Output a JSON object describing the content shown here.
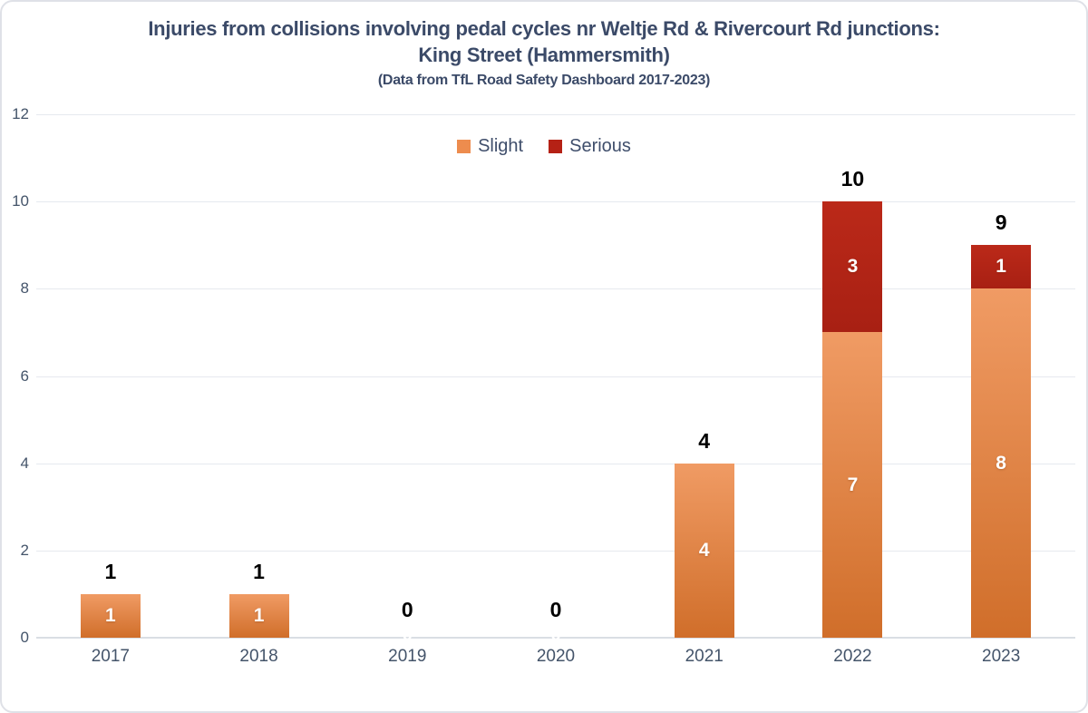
{
  "window": {
    "background": "#FFFFFF",
    "border_color": "#DFE1E7"
  },
  "chart_data": {
    "type": "bar",
    "stacked": true,
    "title_line1": "Injuries from collisions involving pedal cycles nr Weltje Rd & Rivercourt Rd junctions:",
    "title_line2": "King Street (Hammersmith)",
    "subtitle": "(Data from TfL Road Safety Dashboard 2017-2023)",
    "categories": [
      "2017",
      "2018",
      "2019",
      "2020",
      "2021",
      "2022",
      "2023"
    ],
    "series": [
      {
        "name": "Slight",
        "color": "#ED8C4E",
        "color_top": "#F09B64",
        "color_bottom": "#D06E2A",
        "values": [
          1,
          1,
          0,
          0,
          4,
          7,
          8
        ]
      },
      {
        "name": "Serious",
        "color": "#B52115",
        "color_top": "#BB2919",
        "color_bottom": "#A82013",
        "values": [
          0,
          0,
          0,
          0,
          0,
          3,
          1
        ]
      }
    ],
    "totals": [
      1,
      1,
      0,
      0,
      4,
      10,
      9
    ],
    "ylim": [
      0,
      12
    ],
    "yticks": [
      0,
      2,
      4,
      6,
      8,
      10,
      12
    ],
    "grid": true,
    "legend_position": "top-center",
    "colors": {
      "title": "#3B4A68",
      "axis_label": "#44546A",
      "gridline": "#E6E9EF",
      "axis_line": "#DADEE4",
      "total_label": "#000000",
      "bar_label": "#FFFFFF"
    }
  }
}
